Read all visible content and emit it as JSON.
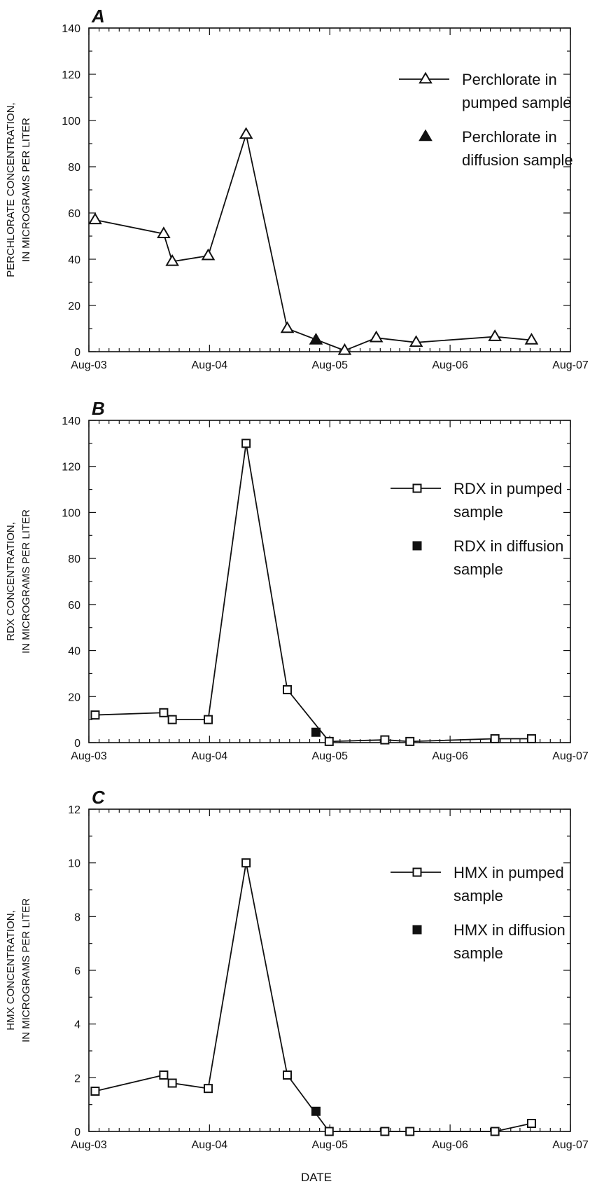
{
  "figure": {
    "xlabel": "DATE"
  },
  "chart_data": [
    {
      "type": "line",
      "panel": "A",
      "ylabel": [
        "PERCHLORATE CONCENTRATION,",
        "IN MICROGRAMS PER LITER"
      ],
      "x_ticks": [
        "Aug-03",
        "Aug-04",
        "Aug-05",
        "Aug-06",
        "Aug-07"
      ],
      "ylim": [
        0,
        140
      ],
      "y_ticks": [
        0,
        20,
        40,
        60,
        80,
        100,
        120,
        140
      ],
      "legend_position": "upper-right",
      "legend": [
        {
          "label": [
            "Perchlorate in",
            "pumped sample"
          ],
          "kind": "line-marker",
          "marker": "triangle-open"
        },
        {
          "label": [
            "Perchlorate in",
            "diffusion sample"
          ],
          "kind": "marker",
          "marker": "triangle-filled"
        }
      ],
      "series": [
        {
          "name": "Perchlorate in pumped sample",
          "marker": "triangle-open",
          "line": true,
          "points": [
            [
              "2003-08-20",
              57
            ],
            [
              "2004-03-15",
              51
            ],
            [
              "2004-04-10",
              39
            ],
            [
              "2004-07-28",
              41.5
            ],
            [
              "2004-11-20",
              94
            ],
            [
              "2005-03-25",
              10
            ],
            [
              "2005-09-15",
              0.5
            ],
            [
              "2005-12-20",
              6
            ],
            [
              "2006-04-20",
              4
            ],
            [
              "2006-12-15",
              6.5
            ],
            [
              "2007-04-05",
              5
            ]
          ]
        },
        {
          "name": "Perchlorate in diffusion sample",
          "marker": "triangle-filled",
          "line": false,
          "points": [
            [
              "2005-06-20",
              5
            ]
          ]
        }
      ]
    },
    {
      "type": "line",
      "panel": "B",
      "ylabel": [
        "RDX CONCENTRATION,",
        "IN MICROGRAMS PER LITER"
      ],
      "x_ticks": [
        "Aug-03",
        "Aug-04",
        "Aug-05",
        "Aug-06",
        "Aug-07"
      ],
      "ylim": [
        0,
        140
      ],
      "y_ticks": [
        0,
        20,
        40,
        60,
        80,
        100,
        120,
        140
      ],
      "legend_position": "right",
      "legend": [
        {
          "label": [
            "RDX in pumped",
            "sample"
          ],
          "kind": "line-marker",
          "marker": "square-open"
        },
        {
          "label": [
            "RDX in diffusion",
            "sample"
          ],
          "kind": "marker",
          "marker": "square-filled"
        }
      ],
      "series": [
        {
          "name": "RDX in pumped sample",
          "marker": "square-open",
          "line": true,
          "points": [
            [
              "2003-08-20",
              12
            ],
            [
              "2004-03-15",
              13
            ],
            [
              "2004-04-10",
              10
            ],
            [
              "2004-07-28",
              10
            ],
            [
              "2004-11-20",
              130
            ],
            [
              "2005-03-25",
              23
            ],
            [
              "2005-07-30",
              0.5
            ],
            [
              "2006-01-15",
              1.2
            ],
            [
              "2006-04-01",
              0.5
            ],
            [
              "2006-12-15",
              1.7
            ],
            [
              "2007-04-05",
              1.7
            ]
          ]
        },
        {
          "name": "RDX in diffusion sample",
          "marker": "square-filled",
          "line": false,
          "points": [
            [
              "2005-06-20",
              4.5
            ]
          ]
        }
      ]
    },
    {
      "type": "line",
      "panel": "C",
      "ylabel": [
        "HMX CONCENTRATION,",
        "IN MICROGRAMS PER LITER"
      ],
      "x_ticks": [
        "Aug-03",
        "Aug-04",
        "Aug-05",
        "Aug-06",
        "Aug-07"
      ],
      "ylim": [
        0,
        12
      ],
      "y_ticks": [
        0,
        2,
        4,
        6,
        8,
        10,
        12
      ],
      "legend_position": "upper-right",
      "legend": [
        {
          "label": [
            "HMX in pumped",
            "sample"
          ],
          "kind": "line-marker",
          "marker": "square-open"
        },
        {
          "label": [
            "HMX in diffusion",
            "sample"
          ],
          "kind": "marker",
          "marker": "square-filled"
        }
      ],
      "series": [
        {
          "name": "HMX in pumped sample",
          "marker": "square-open",
          "line": true,
          "points": [
            [
              "2003-08-20",
              1.5
            ],
            [
              "2004-03-15",
              2.1
            ],
            [
              "2004-04-10",
              1.8
            ],
            [
              "2004-07-28",
              1.6
            ],
            [
              "2004-11-20",
              10
            ],
            [
              "2005-03-25",
              2.1
            ],
            [
              "2005-07-30",
              0
            ],
            [
              "2006-01-15",
              0
            ],
            [
              "2006-04-01",
              0
            ],
            [
              "2006-12-15",
              0
            ],
            [
              "2007-04-05",
              0.3
            ]
          ]
        },
        {
          "name": "HMX in diffusion sample",
          "marker": "square-filled",
          "line": false,
          "points": [
            [
              "2005-06-20",
              0.75
            ]
          ]
        }
      ]
    }
  ]
}
